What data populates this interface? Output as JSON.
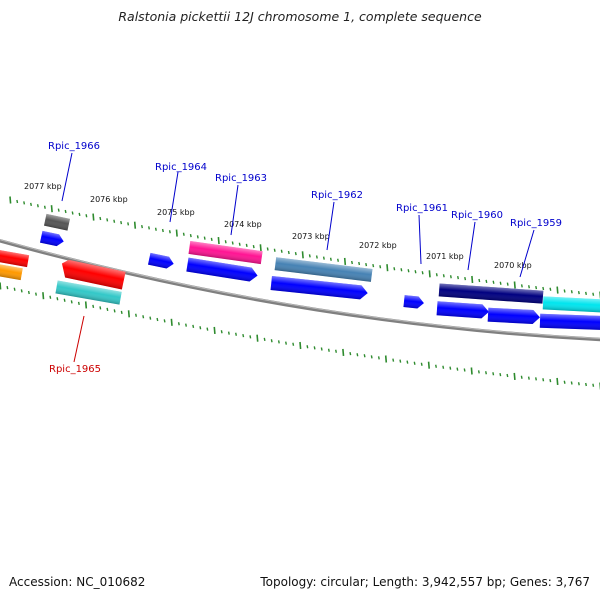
{
  "title": "Ralstonia pickettii 12J chromosome 1, complete sequence",
  "footer": {
    "accession": "Accession: NC_010682",
    "summary": "Topology: circular; Length: 3,942,557 bp; Genes: 3,767"
  },
  "colors": {
    "forward_label": "#0000cc",
    "reverse_label": "#cc0000",
    "backbone": "#808080",
    "ticks": "#2e8b2e"
  },
  "scale_labels": [
    "2077 kbp",
    "2076 kbp",
    "2075 kbp",
    "2074 kbp",
    "2073 kbp",
    "2072 kbp",
    "2071 kbp",
    "2070 kbp"
  ],
  "gene_labels": [
    {
      "text": "Rpic_1966",
      "strand": "forward"
    },
    {
      "text": "Rpic_1964",
      "strand": "forward"
    },
    {
      "text": "Rpic_1963",
      "strand": "forward"
    },
    {
      "text": "Rpic_1962",
      "strand": "forward"
    },
    {
      "text": "Rpic_1961",
      "strand": "forward"
    },
    {
      "text": "Rpic_1960",
      "strand": "forward"
    },
    {
      "text": "Rpic_1959",
      "strand": "forward"
    },
    {
      "text": "Rpic_1965",
      "strand": "reverse"
    }
  ]
}
